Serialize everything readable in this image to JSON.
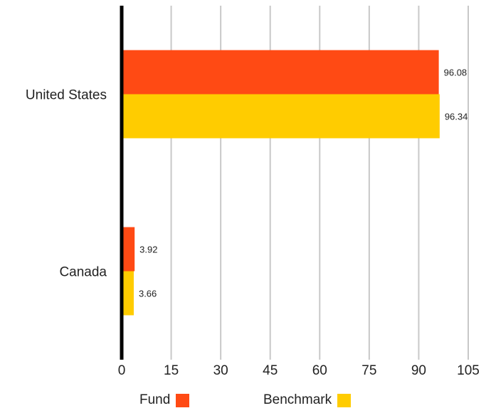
{
  "chart_data": {
    "type": "bar",
    "orientation": "horizontal",
    "categories": [
      "United States",
      "Canada"
    ],
    "series": [
      {
        "name": "Fund",
        "values": [
          96.08,
          3.92
        ],
        "labels": [
          "96.08",
          "3.92"
        ],
        "color": "#ff4a14"
      },
      {
        "name": "Benchmark",
        "values": [
          96.34,
          3.66
        ],
        "labels": [
          "96.34",
          "3.66"
        ],
        "color": "#ffcc00"
      }
    ],
    "xlim": [
      0,
      105
    ],
    "xticks": [
      0,
      15,
      30,
      45,
      60,
      75,
      90,
      105
    ],
    "grid": true,
    "legend_position": "bottom"
  }
}
